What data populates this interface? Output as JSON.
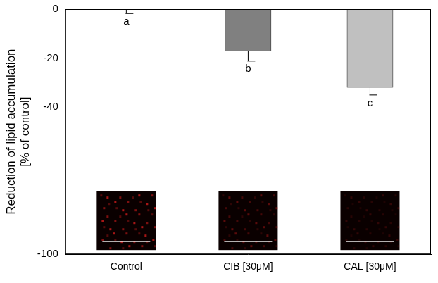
{
  "chart_data": {
    "type": "bar",
    "y_label": [
      "Reduction of lipid accumulation",
      "[% of control]"
    ],
    "categories": [
      "Control",
      "CIB [30μM]",
      "CAL [30μM]"
    ],
    "values": [
      0,
      -17.2,
      -32
    ],
    "errors": [
      1.8,
      4.0,
      3.0
    ],
    "letters": [
      "a",
      "b",
      "c"
    ],
    "colors": [
      "#ffffff",
      "#808080",
      "#c0c0c0"
    ],
    "ylim": [
      -100,
      0
    ],
    "yticks": [
      -100,
      -40,
      -20,
      0
    ],
    "grid": false,
    "legend": false
  }
}
